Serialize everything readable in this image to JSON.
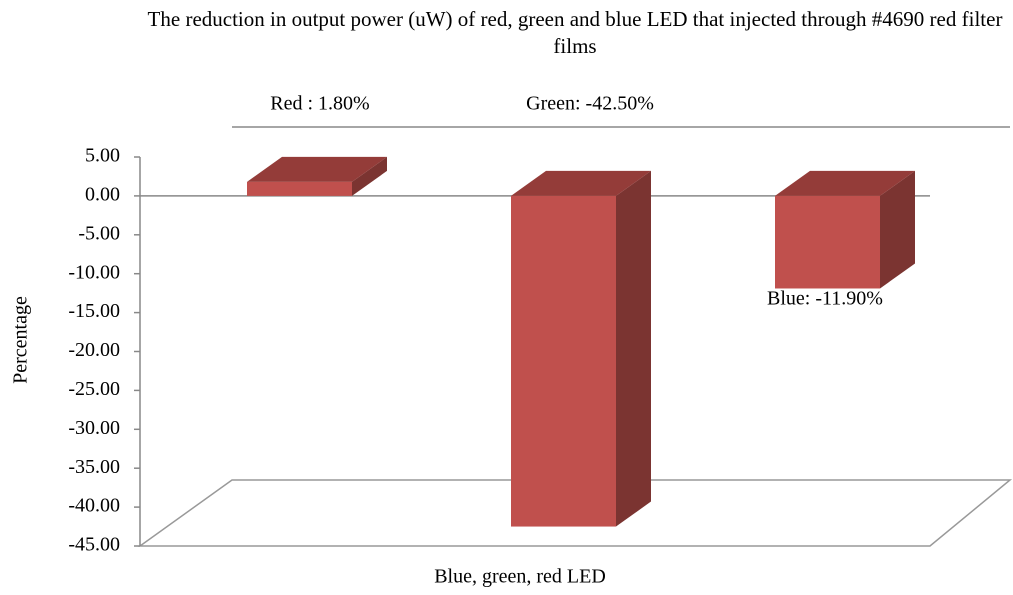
{
  "chart_data": {
    "type": "bar3d",
    "title": "The reduction in output power (uW) of red, green and blue LED that injected through #4690 red filter films",
    "y_label": "Percentage",
    "x_label": "Blue, green, red LED",
    "categories": [
      null,
      null,
      null
    ],
    "values": [
      1.8,
      -42.5,
      -11.9
    ],
    "value_labels": [
      "Red : 1.80%",
      "Green: -42.50%",
      "Blue: -11.90%"
    ],
    "color": "#c0504d",
    "ylim": [
      -45,
      5
    ],
    "yticks": [
      {
        "value": 5,
        "label": "5.00"
      },
      {
        "value": 0,
        "label": "0.00"
      },
      {
        "value": -5,
        "label": "-5.00"
      },
      {
        "value": -10,
        "label": "-10.00"
      },
      {
        "value": -15,
        "label": "-15.00"
      },
      {
        "value": -20,
        "label": "-20.00"
      },
      {
        "value": -25,
        "label": "-25.00"
      },
      {
        "value": -30,
        "label": "-30.00"
      },
      {
        "value": -35,
        "label": "-35.00"
      },
      {
        "value": -40,
        "label": "-40.00"
      },
      {
        "value": -45,
        "label": "-45.00"
      }
    ]
  }
}
